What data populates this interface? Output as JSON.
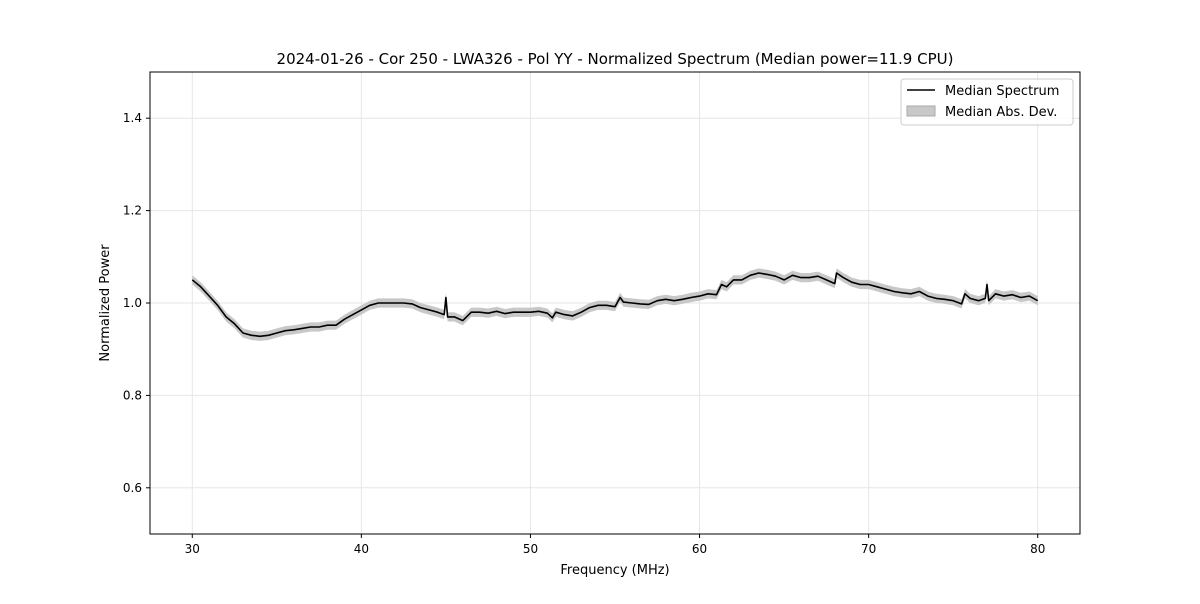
{
  "chart_data": {
    "type": "line",
    "title": "2024-01-26 - Cor 250 - LWA326 - Pol YY - Normalized Spectrum (Median power=11.9 CPU)",
    "xlabel": "Frequency (MHz)",
    "ylabel": "Normalized Power",
    "xlim": [
      27.5,
      82.5
    ],
    "ylim": [
      0.5,
      1.5
    ],
    "xticks": [
      30,
      40,
      50,
      60,
      70,
      80
    ],
    "yticks": [
      0.6,
      0.8,
      1.0,
      1.2,
      1.4
    ],
    "xtick_labels": [
      "30",
      "40",
      "50",
      "60",
      "70",
      "80"
    ],
    "ytick_labels": [
      "0.6",
      "0.8",
      "1.0",
      "1.2",
      "1.4"
    ],
    "grid": true,
    "legend_position": "top-right",
    "legend": [
      "Median Spectrum",
      "Median Abs. Dev."
    ],
    "colors": {
      "line": "#000000",
      "band": "#c8c8c8",
      "grid": "#e6e6e6"
    },
    "mad": 0.01,
    "series": [
      {
        "name": "Median Spectrum",
        "x": [
          30,
          30.5,
          31,
          31.5,
          32,
          32.5,
          33,
          33.5,
          34,
          34.5,
          35,
          35.5,
          36,
          36.5,
          37,
          37.5,
          38,
          38.5,
          39,
          39.5,
          40,
          40.5,
          41,
          41.5,
          42,
          42.5,
          43,
          43.5,
          44,
          44.5,
          44.9,
          45,
          45.1,
          45.5,
          46,
          46.5,
          47,
          47.5,
          48,
          48.5,
          49,
          49.5,
          50,
          50.5,
          51,
          51.3,
          51.5,
          52,
          52.5,
          53,
          53.5,
          54,
          54.5,
          55,
          55.3,
          55.5,
          56,
          56.5,
          57,
          57.5,
          58,
          58.5,
          59,
          59.5,
          60,
          60.5,
          61,
          61.3,
          61.6,
          62,
          62.5,
          63,
          63.5,
          64,
          64.5,
          65,
          65.5,
          66,
          66.5,
          67,
          67.5,
          68,
          68.1,
          68.5,
          69,
          69.5,
          70,
          70.5,
          71,
          71.5,
          72,
          72.5,
          73,
          73.5,
          74,
          74.5,
          75,
          75.5,
          75.7,
          76,
          76.5,
          76.9,
          77,
          77.1,
          77.5,
          78,
          78.5,
          79,
          79.5,
          80
        ],
        "y": [
          1.05,
          1.035,
          1.015,
          0.995,
          0.97,
          0.955,
          0.935,
          0.93,
          0.928,
          0.93,
          0.935,
          0.94,
          0.942,
          0.945,
          0.948,
          0.948,
          0.952,
          0.952,
          0.965,
          0.975,
          0.985,
          0.995,
          1.0,
          1.0,
          1.0,
          1.0,
          0.998,
          0.99,
          0.985,
          0.98,
          0.975,
          1.012,
          0.97,
          0.97,
          0.962,
          0.98,
          0.98,
          0.978,
          0.982,
          0.977,
          0.98,
          0.98,
          0.98,
          0.982,
          0.978,
          0.968,
          0.98,
          0.975,
          0.972,
          0.98,
          0.99,
          0.995,
          0.995,
          0.992,
          1.012,
          1.002,
          1.0,
          0.998,
          0.997,
          1.005,
          1.008,
          1.005,
          1.008,
          1.012,
          1.015,
          1.02,
          1.018,
          1.04,
          1.035,
          1.05,
          1.05,
          1.06,
          1.065,
          1.062,
          1.058,
          1.05,
          1.06,
          1.055,
          1.055,
          1.058,
          1.05,
          1.042,
          1.065,
          1.055,
          1.045,
          1.04,
          1.04,
          1.035,
          1.03,
          1.025,
          1.022,
          1.02,
          1.025,
          1.015,
          1.01,
          1.008,
          1.005,
          0.998,
          1.02,
          1.01,
          1.005,
          1.01,
          1.04,
          1.005,
          1.02,
          1.015,
          1.018,
          1.012,
          1.015,
          1.005
        ]
      }
    ]
  }
}
